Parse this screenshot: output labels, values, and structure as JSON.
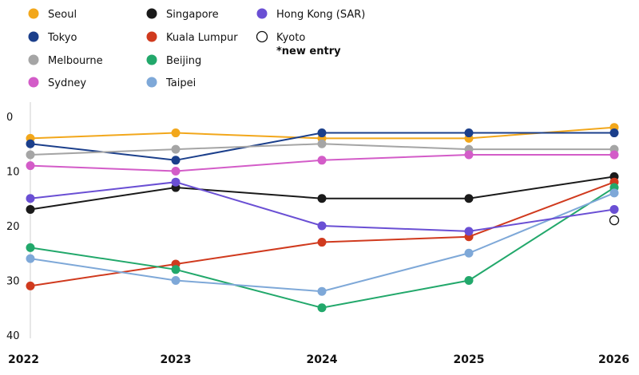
{
  "chart_data": {
    "type": "line",
    "categories": [
      "2022",
      "2023",
      "2024",
      "2025",
      "2026"
    ],
    "y_ticks": [
      "0",
      "10",
      "20",
      "30",
      "40"
    ],
    "ylim": [
      0,
      40
    ],
    "y_inverted": true,
    "grid": false,
    "legend_position": "top",
    "series": [
      {
        "name": "Seoul",
        "color": "#F2A71B",
        "values": [
          4,
          3,
          4,
          4,
          2
        ]
      },
      {
        "name": "Tokyo",
        "color": "#1B3F8B",
        "values": [
          5,
          8,
          3,
          3,
          3
        ]
      },
      {
        "name": "Melbourne",
        "color": "#A5A5A5",
        "values": [
          7,
          6,
          5,
          6,
          6
        ]
      },
      {
        "name": "Sydney",
        "color": "#D35CC8",
        "values": [
          9,
          10,
          8,
          7,
          7
        ]
      },
      {
        "name": "Singapore",
        "color": "#1A1A1A",
        "values": [
          17,
          13,
          15,
          15,
          11
        ]
      },
      {
        "name": "Kuala Lumpur",
        "color": "#D03A1E",
        "values": [
          31,
          27,
          23,
          22,
          12
        ]
      },
      {
        "name": "Beijing",
        "color": "#22A86B",
        "values": [
          24,
          28,
          35,
          30,
          13
        ]
      },
      {
        "name": "Taipei",
        "color": "#7EA8D8",
        "values": [
          26,
          30,
          32,
          25,
          14
        ]
      },
      {
        "name": "Hong Kong (SAR)",
        "color": "#6A4FD4",
        "values": [
          15,
          12,
          20,
          21,
          17
        ]
      },
      {
        "name": "Kyoto",
        "color": "#111111",
        "values": [
          null,
          null,
          null,
          null,
          19
        ],
        "hollow": true,
        "note": "*new entry"
      }
    ]
  }
}
